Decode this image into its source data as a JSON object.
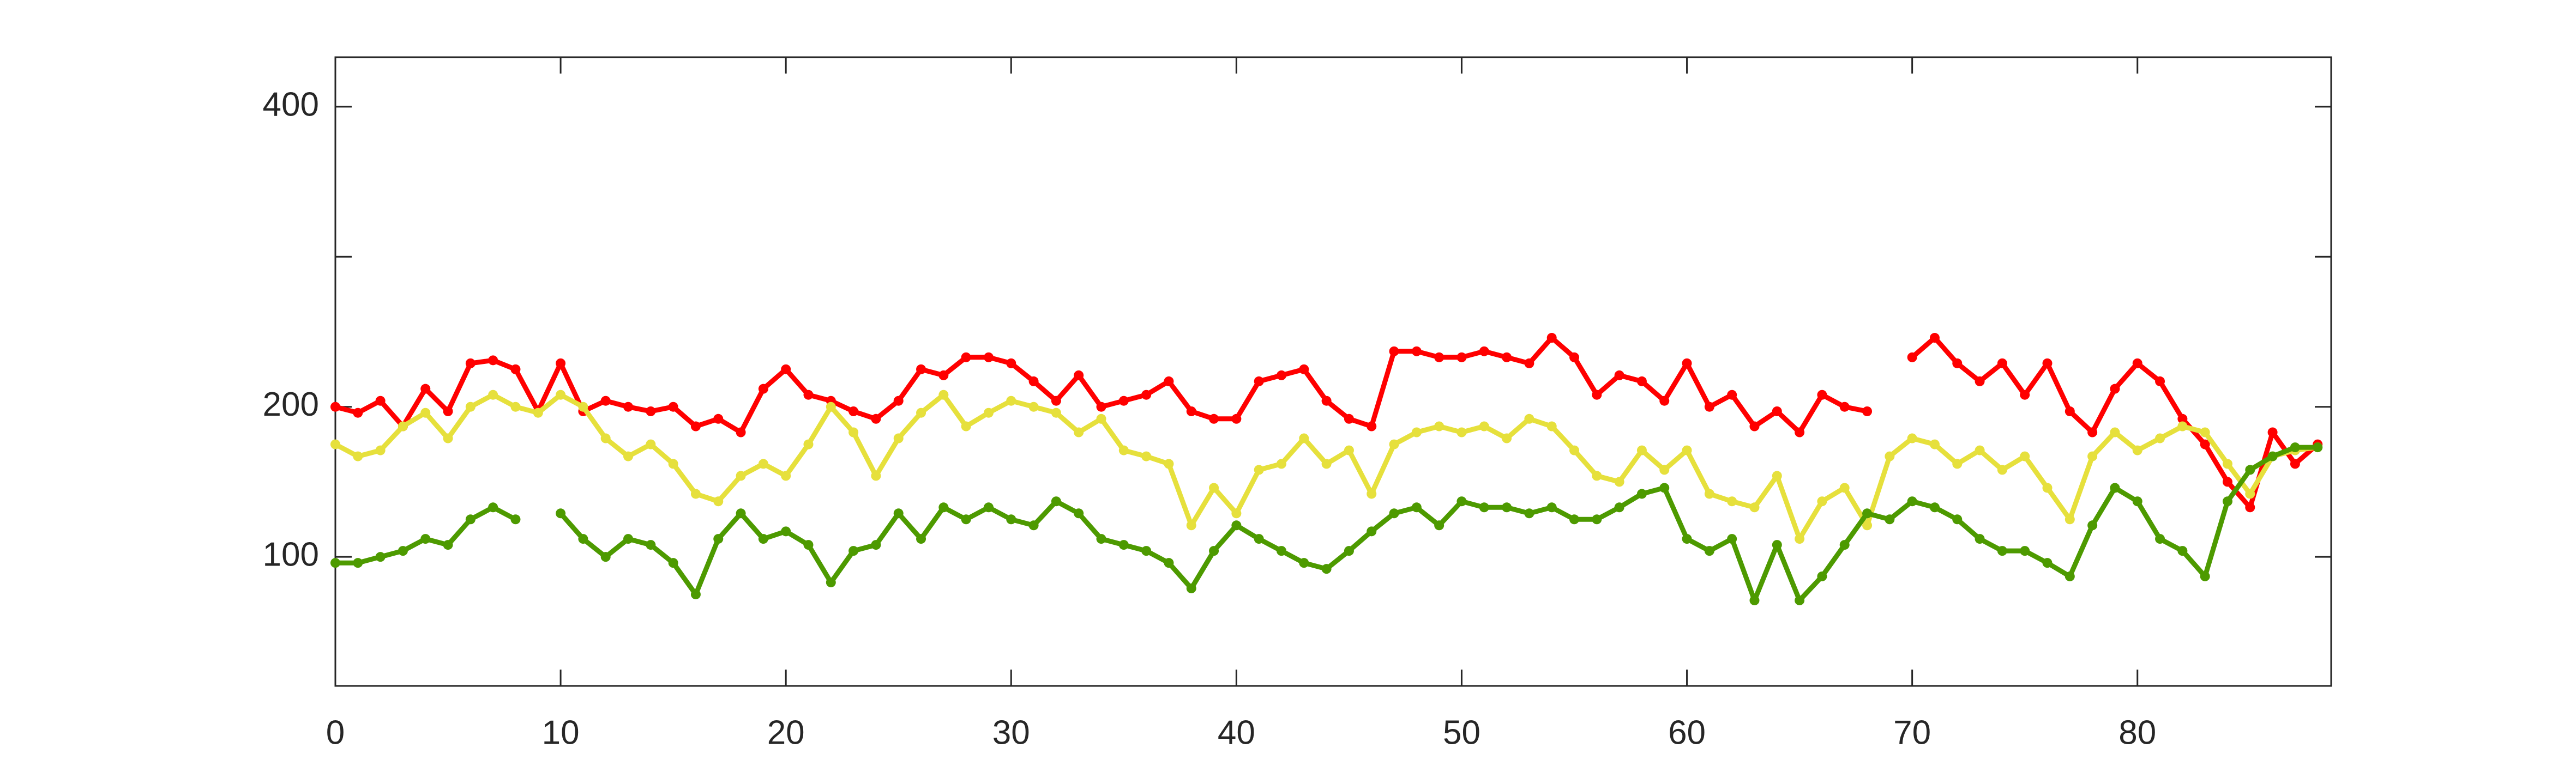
{
  "chart_data": {
    "type": "line",
    "marker": "dot",
    "x": [
      0,
      1,
      2,
      3,
      4,
      5,
      6,
      7,
      8,
      9,
      10,
      11,
      12,
      13,
      14,
      15,
      16,
      17,
      18,
      19,
      20,
      21,
      22,
      23,
      24,
      25,
      26,
      27,
      28,
      29,
      30,
      31,
      32,
      33,
      34,
      35,
      36,
      37,
      38,
      39,
      40,
      41,
      42,
      43,
      44,
      45,
      46,
      47,
      48,
      49,
      50,
      51,
      52,
      53,
      54,
      55,
      56,
      57,
      58,
      59,
      60,
      61,
      62,
      63,
      64,
      65,
      66,
      67,
      68,
      69,
      70,
      71,
      72,
      73,
      74,
      75,
      76,
      77,
      78,
      79,
      80,
      81,
      82,
      83,
      84,
      85,
      86,
      87,
      88
    ],
    "series": [
      {
        "color": "#ff0000",
        "values": [
          200,
          196,
          204,
          187,
          212,
          197,
          229,
          231,
          225,
          197,
          229,
          197,
          204,
          200,
          197,
          200,
          187,
          192,
          183,
          212,
          225,
          208,
          204,
          197,
          192,
          204,
          225,
          221,
          233,
          233,
          229,
          217,
          204,
          221,
          200,
          204,
          208,
          217,
          197,
          192,
          192,
          217,
          221,
          225,
          204,
          192,
          187,
          237,
          237,
          233,
          233,
          237,
          233,
          229,
          246,
          233,
          208,
          221,
          217,
          204,
          229,
          200,
          208,
          187,
          197,
          183,
          208,
          200,
          197,
          null,
          233,
          246,
          229,
          217,
          229,
          208,
          229,
          197,
          183,
          212,
          229,
          217,
          192,
          175,
          150,
          133,
          183,
          162,
          175
        ]
      },
      {
        "color": "#e6e03c",
        "values": [
          175,
          167,
          171,
          187,
          196,
          179,
          200,
          208,
          200,
          196,
          208,
          200,
          179,
          167,
          175,
          162,
          142,
          137,
          154,
          162,
          154,
          175,
          200,
          183,
          154,
          179,
          196,
          208,
          187,
          196,
          204,
          200,
          196,
          183,
          192,
          171,
          167,
          162,
          121,
          146,
          129,
          158,
          162,
          179,
          162,
          171,
          142,
          175,
          183,
          187,
          183,
          187,
          179,
          192,
          187,
          171,
          154,
          150,
          171,
          158,
          171,
          142,
          137,
          133,
          154,
          112,
          137,
          146,
          121,
          167,
          179,
          175,
          162,
          171,
          158,
          167,
          146,
          125,
          167,
          183,
          171,
          179,
          187,
          183,
          162,
          142,
          167,
          171,
          173
        ]
      },
      {
        "color": "#4d9a00",
        "values": [
          96,
          96,
          100,
          104,
          112,
          108,
          125,
          133,
          125,
          null,
          129,
          112,
          100,
          112,
          108,
          96,
          75,
          112,
          129,
          112,
          117,
          108,
          83,
          104,
          108,
          129,
          112,
          133,
          125,
          133,
          125,
          121,
          137,
          129,
          112,
          108,
          104,
          96,
          79,
          104,
          121,
          112,
          104,
          96,
          92,
          104,
          117,
          129,
          133,
          121,
          137,
          133,
          133,
          129,
          133,
          125,
          125,
          133,
          142,
          146,
          112,
          104,
          112,
          71,
          108,
          71,
          87,
          108,
          129,
          125,
          137,
          133,
          125,
          112,
          104,
          104,
          96,
          87,
          121,
          146,
          137,
          112,
          104,
          87,
          137,
          158,
          167,
          173,
          173
        ]
      }
    ],
    "xlim": [
      0,
      88.6
    ],
    "ylim": [
      14,
      433
    ],
    "xticks": [
      0,
      10,
      20,
      30,
      40,
      50,
      60,
      70,
      80
    ],
    "yticks": [
      100,
      200,
      300,
      400
    ],
    "hidden_yticklabels": [
      300
    ],
    "grid": false
  }
}
